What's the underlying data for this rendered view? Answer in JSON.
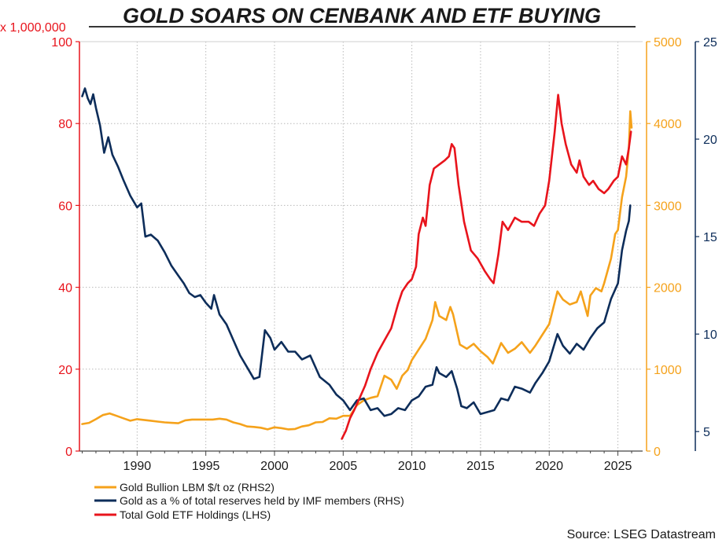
{
  "chart_data": {
    "type": "line",
    "title": "GOLD SOARS ON CENBANK AND ETF BUYING",
    "source": "Source: LSEG Datastream",
    "colors": {
      "gold_price": "#f5a21b",
      "imf_share": "#0d2d5a",
      "etf": "#e8141c"
    },
    "x_axis": {
      "range": [
        1985.8,
        2026.8
      ],
      "ticks": [
        "1990",
        "1995",
        "2000",
        "2005",
        "2010",
        "2015",
        "2020",
        "2025"
      ],
      "tick_values": [
        1990,
        1995,
        2000,
        2005,
        2010,
        2015,
        2020,
        2025
      ]
    },
    "left_axis": {
      "label": "x 1,000,000",
      "range": [
        0,
        100
      ],
      "ticks": [
        "0",
        "20",
        "40",
        "60",
        "80",
        "100"
      ],
      "tick_values": [
        0,
        20,
        40,
        60,
        80,
        100
      ]
    },
    "rhs2_axis": {
      "range": [
        0,
        5000
      ],
      "ticks": [
        "0",
        "1000",
        "2000",
        "3000",
        "4000",
        "5000"
      ],
      "tick_values": [
        0,
        1000,
        2000,
        3000,
        4000,
        5000
      ]
    },
    "rhs_axis": {
      "range": [
        4,
        25
      ],
      "ticks": [
        "5",
        "10",
        "15",
        "20",
        "25"
      ],
      "tick_values": [
        5,
        10,
        15,
        20,
        25
      ]
    },
    "grid": true,
    "legend_position": "bottom-left",
    "series": [
      {
        "name": "Gold Bullion LBM $/t oz (RHS2)",
        "axis": "rhs2",
        "points": [
          [
            1986.0,
            330
          ],
          [
            1986.5,
            345
          ],
          [
            1987.0,
            390
          ],
          [
            1987.5,
            440
          ],
          [
            1988.0,
            460
          ],
          [
            1988.5,
            430
          ],
          [
            1989.0,
            400
          ],
          [
            1989.5,
            370
          ],
          [
            1990.0,
            390
          ],
          [
            1990.5,
            380
          ],
          [
            1991.0,
            370
          ],
          [
            1991.5,
            360
          ],
          [
            1992.0,
            350
          ],
          [
            1992.5,
            345
          ],
          [
            1993.0,
            340
          ],
          [
            1993.5,
            375
          ],
          [
            1994.0,
            385
          ],
          [
            1994.5,
            385
          ],
          [
            1995.0,
            385
          ],
          [
            1995.5,
            385
          ],
          [
            1996.0,
            395
          ],
          [
            1996.5,
            385
          ],
          [
            1997.0,
            350
          ],
          [
            1997.5,
            330
          ],
          [
            1998.0,
            300
          ],
          [
            1998.5,
            295
          ],
          [
            1999.0,
            285
          ],
          [
            1999.5,
            265
          ],
          [
            2000.0,
            290
          ],
          [
            2000.5,
            280
          ],
          [
            2001.0,
            265
          ],
          [
            2001.5,
            270
          ],
          [
            2002.0,
            300
          ],
          [
            2002.5,
            315
          ],
          [
            2003.0,
            350
          ],
          [
            2003.5,
            355
          ],
          [
            2004.0,
            400
          ],
          [
            2004.5,
            395
          ],
          [
            2005.0,
            430
          ],
          [
            2005.5,
            430
          ],
          [
            2006.0,
            560
          ],
          [
            2006.5,
            620
          ],
          [
            2007.0,
            650
          ],
          [
            2007.5,
            670
          ],
          [
            2008.0,
            920
          ],
          [
            2008.5,
            870
          ],
          [
            2008.9,
            760
          ],
          [
            2009.3,
            920
          ],
          [
            2009.7,
            990
          ],
          [
            2010.0,
            1110
          ],
          [
            2010.5,
            1240
          ],
          [
            2011.0,
            1370
          ],
          [
            2011.5,
            1600
          ],
          [
            2011.7,
            1820
          ],
          [
            2012.0,
            1650
          ],
          [
            2012.5,
            1600
          ],
          [
            2012.8,
            1760
          ],
          [
            2013.0,
            1670
          ],
          [
            2013.5,
            1300
          ],
          [
            2014.0,
            1250
          ],
          [
            2014.5,
            1310
          ],
          [
            2015.0,
            1220
          ],
          [
            2015.5,
            1150
          ],
          [
            2015.9,
            1070
          ],
          [
            2016.5,
            1320
          ],
          [
            2017.0,
            1200
          ],
          [
            2017.5,
            1250
          ],
          [
            2018.0,
            1330
          ],
          [
            2018.6,
            1200
          ],
          [
            2019.0,
            1290
          ],
          [
            2019.5,
            1420
          ],
          [
            2020.0,
            1550
          ],
          [
            2020.6,
            1950
          ],
          [
            2021.0,
            1850
          ],
          [
            2021.5,
            1790
          ],
          [
            2022.0,
            1820
          ],
          [
            2022.3,
            1950
          ],
          [
            2022.8,
            1650
          ],
          [
            2023.0,
            1900
          ],
          [
            2023.4,
            1990
          ],
          [
            2023.8,
            1950
          ],
          [
            2024.0,
            2050
          ],
          [
            2024.5,
            2350
          ],
          [
            2024.8,
            2650
          ],
          [
            2025.0,
            2700
          ],
          [
            2025.3,
            3100
          ],
          [
            2025.6,
            3350
          ],
          [
            2025.8,
            3700
          ],
          [
            2025.9,
            4150
          ],
          [
            2026.0,
            3950
          ]
        ]
      },
      {
        "name": "Gold as a % of total reserves held by IMF members (RHS)",
        "axis": "rhs",
        "points": [
          [
            1986.0,
            22.2
          ],
          [
            1986.2,
            22.6
          ],
          [
            1986.4,
            22.1
          ],
          [
            1986.6,
            21.8
          ],
          [
            1986.8,
            22.3
          ],
          [
            1987.0,
            21.6
          ],
          [
            1987.3,
            20.7
          ],
          [
            1987.6,
            19.3
          ],
          [
            1987.9,
            20.1
          ],
          [
            1988.2,
            19.2
          ],
          [
            1988.6,
            18.6
          ],
          [
            1989.0,
            17.9
          ],
          [
            1989.5,
            17.1
          ],
          [
            1990.0,
            16.5
          ],
          [
            1990.3,
            16.7
          ],
          [
            1990.6,
            15.0
          ],
          [
            1991.0,
            15.1
          ],
          [
            1991.5,
            14.8
          ],
          [
            1992.0,
            14.2
          ],
          [
            1992.5,
            13.5
          ],
          [
            1993.0,
            13.0
          ],
          [
            1993.4,
            12.6
          ],
          [
            1993.8,
            12.1
          ],
          [
            1994.2,
            11.9
          ],
          [
            1994.6,
            12.0
          ],
          [
            1995.0,
            11.6
          ],
          [
            1995.4,
            11.3
          ],
          [
            1995.6,
            12.0
          ],
          [
            1996.0,
            11.0
          ],
          [
            1996.5,
            10.5
          ],
          [
            1997.0,
            9.7
          ],
          [
            1997.5,
            8.9
          ],
          [
            1998.0,
            8.3
          ],
          [
            1998.5,
            7.7
          ],
          [
            1998.9,
            7.8
          ],
          [
            1999.3,
            10.2
          ],
          [
            1999.7,
            9.8
          ],
          [
            2000.0,
            9.2
          ],
          [
            2000.5,
            9.6
          ],
          [
            2001.0,
            9.1
          ],
          [
            2001.5,
            9.1
          ],
          [
            2002.0,
            8.7
          ],
          [
            2002.6,
            8.9
          ],
          [
            2003.3,
            7.8
          ],
          [
            2004.0,
            7.4
          ],
          [
            2004.5,
            6.9
          ],
          [
            2005.0,
            6.6
          ],
          [
            2005.5,
            6.1
          ],
          [
            2006.0,
            6.6
          ],
          [
            2006.5,
            6.7
          ],
          [
            2007.0,
            6.1
          ],
          [
            2007.5,
            6.2
          ],
          [
            2008.0,
            5.8
          ],
          [
            2008.5,
            5.9
          ],
          [
            2009.0,
            6.2
          ],
          [
            2009.5,
            6.1
          ],
          [
            2010.0,
            6.6
          ],
          [
            2010.5,
            6.8
          ],
          [
            2011.0,
            7.3
          ],
          [
            2011.5,
            7.4
          ],
          [
            2011.8,
            8.3
          ],
          [
            2012.0,
            8.0
          ],
          [
            2012.5,
            7.8
          ],
          [
            2012.9,
            8.1
          ],
          [
            2013.3,
            7.2
          ],
          [
            2013.6,
            6.3
          ],
          [
            2014.0,
            6.2
          ],
          [
            2014.5,
            6.5
          ],
          [
            2015.0,
            5.9
          ],
          [
            2015.5,
            6.0
          ],
          [
            2016.0,
            6.1
          ],
          [
            2016.5,
            6.7
          ],
          [
            2017.0,
            6.6
          ],
          [
            2017.5,
            7.3
          ],
          [
            2018.0,
            7.2
          ],
          [
            2018.6,
            7.0
          ],
          [
            2019.0,
            7.5
          ],
          [
            2019.5,
            8.0
          ],
          [
            2020.0,
            8.6
          ],
          [
            2020.6,
            10.0
          ],
          [
            2021.0,
            9.4
          ],
          [
            2021.5,
            9.0
          ],
          [
            2022.0,
            9.5
          ],
          [
            2022.5,
            9.2
          ],
          [
            2023.0,
            9.8
          ],
          [
            2023.5,
            10.3
          ],
          [
            2024.0,
            10.6
          ],
          [
            2024.5,
            11.8
          ],
          [
            2025.0,
            12.6
          ],
          [
            2025.3,
            14.3
          ],
          [
            2025.6,
            15.3
          ],
          [
            2025.8,
            15.8
          ],
          [
            2025.9,
            16.6
          ]
        ]
      },
      {
        "name": "Total Gold ETF Holdings (LHS)",
        "axis": "left",
        "points": [
          [
            2004.9,
            3
          ],
          [
            2005.2,
            5
          ],
          [
            2005.5,
            8
          ],
          [
            2005.8,
            10
          ],
          [
            2006.2,
            13
          ],
          [
            2006.6,
            16
          ],
          [
            2007.0,
            20
          ],
          [
            2007.5,
            24
          ],
          [
            2008.0,
            27
          ],
          [
            2008.5,
            30
          ],
          [
            2009.0,
            36
          ],
          [
            2009.3,
            39
          ],
          [
            2009.7,
            41
          ],
          [
            2010.0,
            42
          ],
          [
            2010.3,
            45
          ],
          [
            2010.5,
            53
          ],
          [
            2010.8,
            57
          ],
          [
            2011.0,
            55
          ],
          [
            2011.3,
            65
          ],
          [
            2011.6,
            69
          ],
          [
            2012.0,
            70
          ],
          [
            2012.4,
            71
          ],
          [
            2012.7,
            72
          ],
          [
            2012.9,
            75
          ],
          [
            2013.1,
            74
          ],
          [
            2013.4,
            65
          ],
          [
            2013.8,
            56
          ],
          [
            2014.3,
            49
          ],
          [
            2014.8,
            47
          ],
          [
            2015.3,
            44
          ],
          [
            2015.7,
            42
          ],
          [
            2015.95,
            41
          ],
          [
            2016.3,
            48
          ],
          [
            2016.6,
            56
          ],
          [
            2017.0,
            54
          ],
          [
            2017.5,
            57
          ],
          [
            2018.0,
            56
          ],
          [
            2018.5,
            56
          ],
          [
            2018.9,
            55
          ],
          [
            2019.3,
            58
          ],
          [
            2019.7,
            60
          ],
          [
            2020.0,
            66
          ],
          [
            2020.4,
            78
          ],
          [
            2020.65,
            87
          ],
          [
            2020.9,
            80
          ],
          [
            2021.2,
            75
          ],
          [
            2021.6,
            70
          ],
          [
            2022.0,
            68
          ],
          [
            2022.2,
            71
          ],
          [
            2022.5,
            67
          ],
          [
            2022.9,
            65
          ],
          [
            2023.2,
            66
          ],
          [
            2023.6,
            64
          ],
          [
            2024.0,
            63
          ],
          [
            2024.3,
            64
          ],
          [
            2024.7,
            66
          ],
          [
            2025.0,
            67
          ],
          [
            2025.3,
            72
          ],
          [
            2025.6,
            70
          ],
          [
            2025.8,
            74
          ],
          [
            2025.95,
            78
          ]
        ]
      }
    ]
  }
}
